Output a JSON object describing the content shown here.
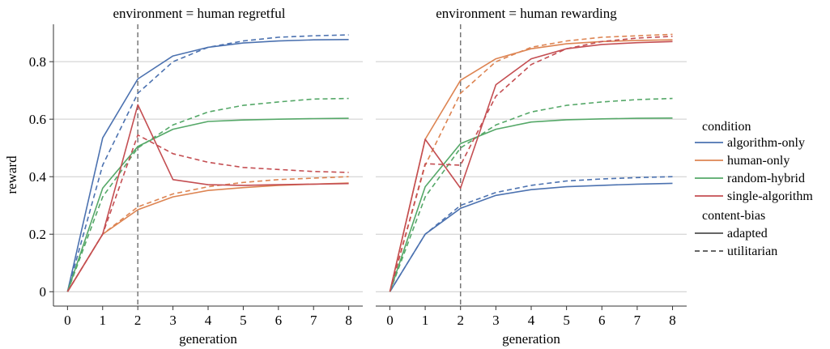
{
  "chart_data": {
    "type": "line",
    "xlabel": "generation",
    "ylabel": "reward",
    "x": [
      0,
      1,
      2,
      3,
      4,
      5,
      6,
      7,
      8
    ],
    "xlim": [
      -0.4,
      8.4
    ],
    "ylim": [
      -0.05,
      0.93
    ],
    "yticks": [
      0,
      0.2,
      0.4,
      0.6,
      0.8
    ],
    "ytick_labels": [
      "0",
      "0.2",
      "0.4",
      "0.6",
      "0.8"
    ],
    "xtick_labels": [
      "0",
      "1",
      "2",
      "3",
      "4",
      "5",
      "6",
      "7",
      "8"
    ],
    "grid": "horizontal",
    "vline_x": 2,
    "colors": {
      "algorithm-only": "#4c72b0",
      "human-only": "#dd8452",
      "random-hybrid": "#55a868",
      "single-algorithm": "#c44e52"
    },
    "legend": {
      "placement": "right",
      "condition_title": "condition",
      "conditions": [
        "algorithm-only",
        "human-only",
        "random-hybrid",
        "single-algorithm"
      ],
      "style_title": "content-bias",
      "styles": [
        "adapted",
        "utilitarian"
      ]
    },
    "panels": [
      {
        "title": "environment = human regretful",
        "series": [
          {
            "condition": "algorithm-only",
            "bias": "adapted",
            "values": [
              0,
              0.535,
              0.74,
              0.82,
              0.85,
              0.865,
              0.872,
              0.876,
              0.877
            ]
          },
          {
            "condition": "algorithm-only",
            "bias": "utilitarian",
            "values": [
              0,
              0.44,
              0.69,
              0.8,
              0.85,
              0.872,
              0.885,
              0.89,
              0.893
            ]
          },
          {
            "condition": "human-only",
            "bias": "adapted",
            "values": [
              0,
              0.2,
              0.285,
              0.33,
              0.352,
              0.362,
              0.37,
              0.374,
              0.378
            ]
          },
          {
            "condition": "human-only",
            "bias": "utilitarian",
            "values": [
              0,
              0.2,
              0.295,
              0.34,
              0.365,
              0.38,
              0.39,
              0.395,
              0.4
            ]
          },
          {
            "condition": "random-hybrid",
            "bias": "adapted",
            "values": [
              0,
              0.36,
              0.505,
              0.565,
              0.592,
              0.597,
              0.6,
              0.602,
              0.603
            ]
          },
          {
            "condition": "random-hybrid",
            "bias": "utilitarian",
            "values": [
              0,
              0.33,
              0.5,
              0.58,
              0.625,
              0.648,
              0.66,
              0.67,
              0.672
            ]
          },
          {
            "condition": "single-algorithm",
            "bias": "adapted",
            "values": [
              0,
              0.2,
              0.65,
              0.39,
              0.372,
              0.37,
              0.372,
              0.374,
              0.376
            ]
          },
          {
            "condition": "single-algorithm",
            "bias": "utilitarian",
            "values": [
              0,
              0.2,
              0.545,
              0.48,
              0.45,
              0.432,
              0.425,
              0.418,
              0.415
            ]
          }
        ]
      },
      {
        "title": "environment = human rewarding",
        "series": [
          {
            "condition": "algorithm-only",
            "bias": "adapted",
            "values": [
              0,
              0.2,
              0.29,
              0.335,
              0.355,
              0.365,
              0.37,
              0.374,
              0.377
            ]
          },
          {
            "condition": "algorithm-only",
            "bias": "utilitarian",
            "values": [
              0,
              0.2,
              0.3,
              0.345,
              0.37,
              0.385,
              0.392,
              0.397,
              0.4
            ]
          },
          {
            "condition": "human-only",
            "bias": "adapted",
            "values": [
              0,
              0.53,
              0.735,
              0.81,
              0.845,
              0.862,
              0.87,
              0.874,
              0.876
            ]
          },
          {
            "condition": "human-only",
            "bias": "utilitarian",
            "values": [
              0,
              0.44,
              0.69,
              0.8,
              0.85,
              0.872,
              0.885,
              0.89,
              0.895
            ]
          },
          {
            "condition": "random-hybrid",
            "bias": "adapted",
            "values": [
              0,
              0.365,
              0.515,
              0.565,
              0.59,
              0.598,
              0.601,
              0.603,
              0.604
            ]
          },
          {
            "condition": "random-hybrid",
            "bias": "utilitarian",
            "values": [
              0,
              0.33,
              0.5,
              0.58,
              0.625,
              0.648,
              0.66,
              0.668,
              0.672
            ]
          },
          {
            "condition": "single-algorithm",
            "bias": "adapted",
            "values": [
              0,
              0.53,
              0.36,
              0.72,
              0.81,
              0.845,
              0.86,
              0.866,
              0.87
            ]
          },
          {
            "condition": "single-algorithm",
            "bias": "utilitarian",
            "values": [
              0,
              0.445,
              0.44,
              0.68,
              0.79,
              0.845,
              0.87,
              0.882,
              0.888
            ]
          }
        ]
      }
    ]
  }
}
